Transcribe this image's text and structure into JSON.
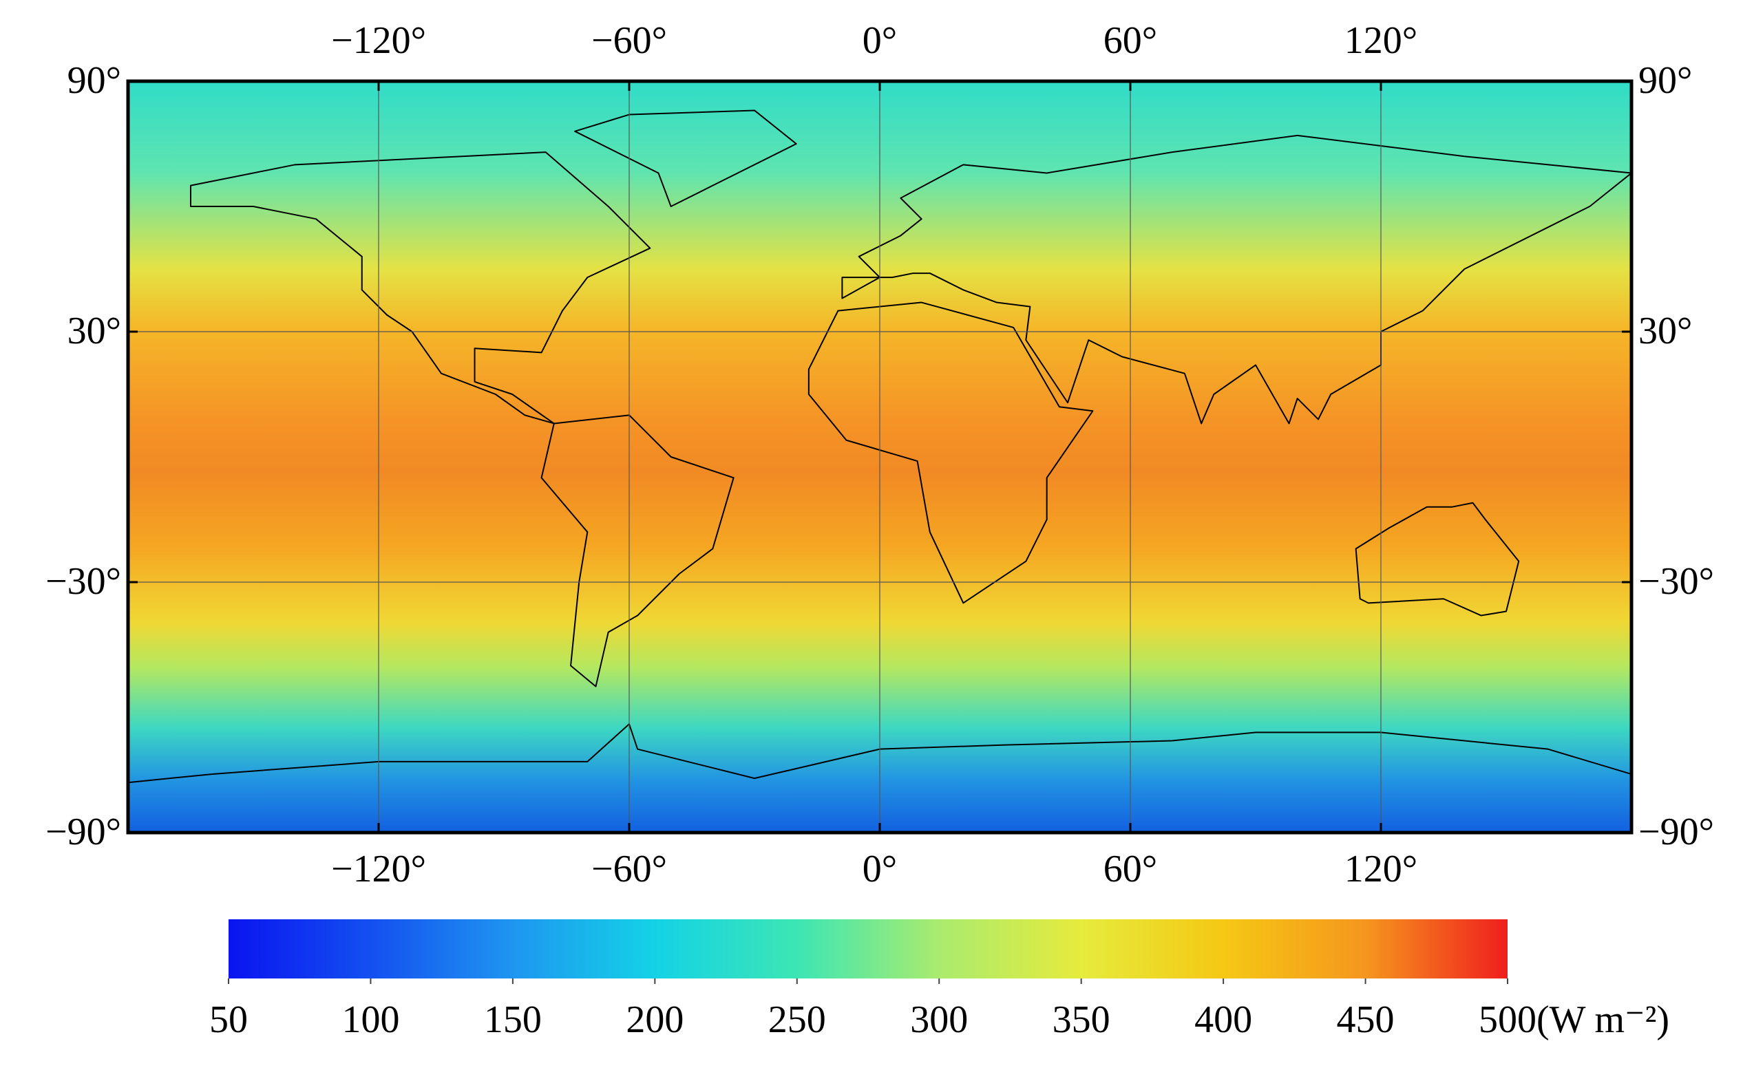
{
  "chart_data": {
    "type": "map",
    "xlim": [
      -180,
      180
    ],
    "ylim": [
      -90,
      90
    ],
    "xticks": [
      {
        "value": -120,
        "label": "−120°"
      },
      {
        "value": -60,
        "label": "−60°"
      },
      {
        "value": 0,
        "label": "0°"
      },
      {
        "value": 60,
        "label": "60°"
      },
      {
        "value": 120,
        "label": "120°"
      }
    ],
    "yticks": [
      {
        "value": 90,
        "label": "90°"
      },
      {
        "value": 30,
        "label": "30°"
      },
      {
        "value": -30,
        "label": "−30°"
      },
      {
        "value": -90,
        "label": "−90°"
      }
    ],
    "grid": true,
    "colorbar": {
      "lim": [
        50,
        500
      ],
      "ticks": [
        50,
        100,
        150,
        200,
        250,
        300,
        350,
        400,
        450,
        500
      ],
      "label": "(W m⁻²)",
      "colors": [
        "#0a14f0",
        "#1450f0",
        "#1e96f0",
        "#14d2e6",
        "#3ce6b4",
        "#aaeb6e",
        "#e6eb3c",
        "#f5c814",
        "#f5961e",
        "#f01e1e"
      ]
    }
  }
}
